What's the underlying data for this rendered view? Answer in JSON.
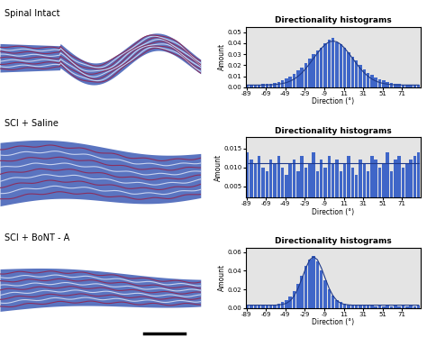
{
  "panels": [
    {
      "label": "Spinal Intact"
    },
    {
      "label": "SCI + Saline"
    },
    {
      "label": "SCI + BoNT - A"
    }
  ],
  "chart_data": [
    {
      "type": "histogram",
      "title": "Directionality histograms",
      "xlabel": "Direction (°)",
      "ylabel": "Amount",
      "bins": [
        -90,
        -86,
        -82,
        -78,
        -74,
        -70,
        -66,
        -62,
        -58,
        -54,
        -50,
        -46,
        -42,
        -38,
        -34,
        -30,
        -26,
        -22,
        -18,
        -14,
        -10,
        -6,
        -2,
        2,
        6,
        10,
        14,
        18,
        22,
        26,
        30,
        34,
        38,
        42,
        46,
        50,
        54,
        58,
        62,
        66,
        70,
        74,
        78,
        82,
        86,
        90
      ],
      "series": [
        {
          "type": "bar",
          "color": "#3f66c8",
          "values": [
            0.002,
            0.002,
            0.002,
            0.002,
            0.003,
            0.003,
            0.003,
            0.004,
            0.005,
            0.006,
            0.008,
            0.01,
            0.012,
            0.015,
            0.018,
            0.022,
            0.026,
            0.03,
            0.033,
            0.036,
            0.04,
            0.043,
            0.045,
            0.041,
            0.039,
            0.036,
            0.032,
            0.028,
            0.024,
            0.02,
            0.016,
            0.013,
            0.011,
            0.009,
            0.007,
            0.006,
            0.005,
            0.004,
            0.003,
            0.003,
            0.002,
            0.002,
            0.002,
            0.002,
            0.002
          ]
        },
        {
          "type": "line",
          "color": "#1f3a8a",
          "values": [
            0.002,
            0.002,
            0.002,
            0.002,
            0.002,
            0.0021,
            0.0022,
            0.0024,
            0.0028,
            0.0034,
            0.0042,
            0.0056,
            0.0074,
            0.0099,
            0.0131,
            0.017,
            0.0215,
            0.0263,
            0.031,
            0.0354,
            0.0389,
            0.0412,
            0.042,
            0.0412,
            0.0389,
            0.0354,
            0.031,
            0.0263,
            0.0215,
            0.017,
            0.0131,
            0.0099,
            0.0074,
            0.0056,
            0.0042,
            0.0034,
            0.0028,
            0.0024,
            0.0022,
            0.0021,
            0.002,
            0.002,
            0.002,
            0.002,
            0.002
          ]
        }
      ],
      "xlim": [
        -90,
        90
      ],
      "xticks": [
        -89,
        -69,
        -49,
        -29,
        -9,
        11,
        31,
        51,
        71
      ],
      "ylim": [
        0,
        0.055
      ],
      "yticks": [
        {
          "value": 0,
          "label": "0.00"
        },
        {
          "value": 0.01,
          "label": "0.01"
        },
        {
          "value": 0.02,
          "label": "0.02"
        },
        {
          "value": 0.03,
          "label": "0.03"
        },
        {
          "value": 0.04,
          "label": "0.04"
        },
        {
          "value": 0.05,
          "label": "0.05"
        }
      ]
    },
    {
      "type": "histogram",
      "title": "Directionality histograms",
      "xlabel": "Direction (°)",
      "ylabel": "Amount",
      "bins": [
        -90,
        -86,
        -82,
        -78,
        -74,
        -70,
        -66,
        -62,
        -58,
        -54,
        -50,
        -46,
        -42,
        -38,
        -34,
        -30,
        -26,
        -22,
        -18,
        -14,
        -10,
        -6,
        -2,
        2,
        6,
        10,
        14,
        18,
        22,
        26,
        30,
        34,
        38,
        42,
        46,
        50,
        54,
        58,
        62,
        66,
        70,
        74,
        78,
        82,
        86,
        90
      ],
      "series": [
        {
          "type": "bar",
          "color": "#3f66c8",
          "values": [
            0.014,
            0.012,
            0.011,
            0.013,
            0.01,
            0.009,
            0.012,
            0.011,
            0.013,
            0.01,
            0.008,
            0.011,
            0.012,
            0.009,
            0.013,
            0.01,
            0.011,
            0.014,
            0.009,
            0.012,
            0.01,
            0.013,
            0.011,
            0.012,
            0.009,
            0.011,
            0.013,
            0.01,
            0.008,
            0.012,
            0.011,
            0.009,
            0.013,
            0.012,
            0.01,
            0.011,
            0.014,
            0.009,
            0.012,
            0.013,
            0.01,
            0.011,
            0.012,
            0.013,
            0.014
          ]
        },
        {
          "type": "line",
          "color": "#1f3a8a",
          "values": [
            0.0112,
            0.0112,
            0.0112,
            0.0112,
            0.0112,
            0.0112,
            0.0112,
            0.0112,
            0.0112,
            0.0112,
            0.0112,
            0.0112,
            0.0112,
            0.0112,
            0.0112,
            0.0112,
            0.0112,
            0.0112,
            0.0112,
            0.0112,
            0.0112,
            0.0112,
            0.0112,
            0.0112,
            0.0112,
            0.0112,
            0.0112,
            0.0112,
            0.0112,
            0.0112,
            0.0112,
            0.0112,
            0.0112,
            0.0112,
            0.0112,
            0.0112,
            0.0112,
            0.0112,
            0.0112,
            0.0112,
            0.0112,
            0.0112,
            0.0112,
            0.0112,
            0.0112
          ]
        }
      ],
      "xlim": [
        -90,
        90
      ],
      "xticks": [
        -89,
        -69,
        -49,
        -29,
        -9,
        11,
        31,
        51,
        71
      ],
      "ylim": [
        0.002,
        0.018
      ],
      "yticks": [
        {
          "value": 0.005,
          "label": "0.005"
        },
        {
          "value": 0.01,
          "label": "0.010"
        },
        {
          "value": 0.015,
          "label": "0.015"
        }
      ]
    },
    {
      "type": "histogram",
      "title": "Directionality histograms",
      "xlabel": "Direction (°)",
      "ylabel": "Amount",
      "bins": [
        -90,
        -86,
        -82,
        -78,
        -74,
        -70,
        -66,
        -62,
        -58,
        -54,
        -50,
        -46,
        -42,
        -38,
        -34,
        -30,
        -26,
        -22,
        -18,
        -14,
        -10,
        -6,
        -2,
        2,
        6,
        10,
        14,
        18,
        22,
        26,
        30,
        34,
        38,
        42,
        46,
        50,
        54,
        58,
        62,
        66,
        70,
        74,
        78,
        82,
        86,
        90
      ],
      "series": [
        {
          "type": "bar",
          "color": "#3f66c8",
          "values": [
            0.003,
            0.003,
            0.003,
            0.003,
            0.004,
            0.003,
            0.004,
            0.004,
            0.005,
            0.006,
            0.008,
            0.012,
            0.018,
            0.026,
            0.035,
            0.045,
            0.052,
            0.056,
            0.05,
            0.04,
            0.03,
            0.02,
            0.013,
            0.008,
            0.006,
            0.005,
            0.004,
            0.004,
            0.003,
            0.003,
            0.003,
            0.003,
            0.003,
            0.002,
            0.003,
            0.002,
            0.003,
            0.002,
            0.003,
            0.002,
            0.003,
            0.002,
            0.003,
            0.002,
            0.003
          ]
        },
        {
          "type": "line",
          "color": "#1f3a8a",
          "values": [
            0.003,
            0.003,
            0.003,
            0.003,
            0.003,
            0.003,
            0.003,
            0.003,
            0.0033,
            0.0038,
            0.005,
            0.0078,
            0.0129,
            0.021,
            0.0317,
            0.0429,
            0.0517,
            0.055,
            0.0517,
            0.0429,
            0.0317,
            0.021,
            0.0129,
            0.0078,
            0.005,
            0.0038,
            0.0033,
            0.003,
            0.003,
            0.003,
            0.003,
            0.003,
            0.003,
            0.003,
            0.003,
            0.003,
            0.003,
            0.003,
            0.003,
            0.003,
            0.003,
            0.003,
            0.003,
            0.003,
            0.003
          ]
        }
      ],
      "xlim": [
        -90,
        90
      ],
      "xticks": [
        -89,
        -69,
        -49,
        -29,
        -9,
        11,
        31,
        51,
        71
      ],
      "ylim": [
        0,
        0.065
      ],
      "yticks": [
        {
          "value": 0,
          "label": "0.00"
        },
        {
          "value": 0.02,
          "label": "0.02"
        },
        {
          "value": 0.04,
          "label": "0.04"
        },
        {
          "value": 0.06,
          "label": "0.06"
        }
      ]
    }
  ]
}
